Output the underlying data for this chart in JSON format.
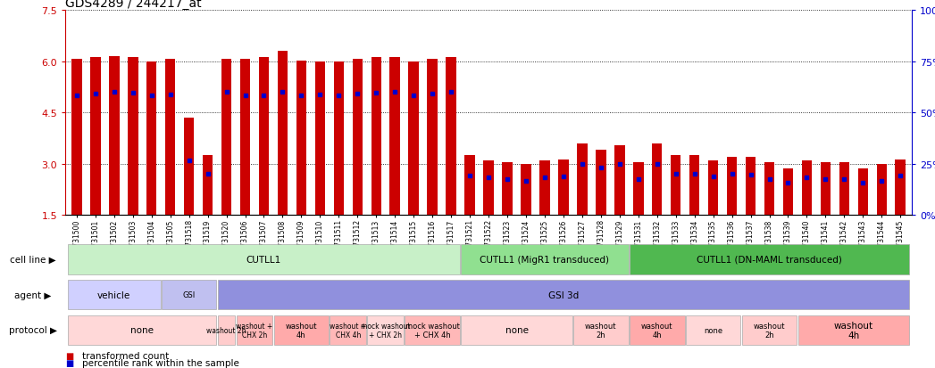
{
  "title": "GDS4289 / 244217_at",
  "ylim_left": [
    1.5,
    7.5
  ],
  "ylim_right": [
    0,
    100
  ],
  "yticks_left": [
    1.5,
    3.0,
    4.5,
    6.0,
    7.5
  ],
  "yticks_right": [
    0,
    25,
    50,
    75,
    100
  ],
  "left_axis_color": "#cc0000",
  "right_axis_color": "#0000cc",
  "bar_color": "#cc0000",
  "marker_color": "#0000cc",
  "samples": [
    "GSM731500",
    "GSM731501",
    "GSM731502",
    "GSM731503",
    "GSM731504",
    "GSM731505",
    "GSM731518",
    "GSM731519",
    "GSM731520",
    "GSM731506",
    "GSM731507",
    "GSM731508",
    "GSM731509",
    "GSM731510",
    "GSM731511",
    "GSM731512",
    "GSM731513",
    "GSM731514",
    "GSM731515",
    "GSM731516",
    "GSM731517",
    "GSM731521",
    "GSM731522",
    "GSM731523",
    "GSM731524",
    "GSM731525",
    "GSM731526",
    "GSM731527",
    "GSM731528",
    "GSM731529",
    "GSM731531",
    "GSM731532",
    "GSM731533",
    "GSM731534",
    "GSM731535",
    "GSM731536",
    "GSM731537",
    "GSM731538",
    "GSM731539",
    "GSM731540",
    "GSM731541",
    "GSM731542",
    "GSM731543",
    "GSM731544",
    "GSM731545"
  ],
  "bar_heights": [
    6.08,
    6.12,
    6.15,
    6.12,
    6.0,
    6.08,
    4.35,
    3.25,
    6.08,
    6.08,
    6.12,
    6.32,
    6.02,
    6.0,
    6.0,
    6.08,
    6.12,
    6.12,
    6.0,
    6.08,
    6.12,
    3.25,
    3.1,
    3.05,
    3.0,
    3.1,
    3.12,
    3.6,
    3.4,
    3.55,
    3.05,
    3.6,
    3.25,
    3.25,
    3.1,
    3.2,
    3.2,
    3.05,
    2.85,
    3.1,
    3.05,
    3.05,
    2.85,
    3.0,
    3.12
  ],
  "marker_heights": [
    5.0,
    5.05,
    5.1,
    5.08,
    5.0,
    5.02,
    3.1,
    2.7,
    5.1,
    5.0,
    5.0,
    5.1,
    5.0,
    5.02,
    5.0,
    5.05,
    5.08,
    5.1,
    5.0,
    5.05,
    5.1,
    2.65,
    2.6,
    2.55,
    2.5,
    2.6,
    2.62,
    3.0,
    2.9,
    3.0,
    2.55,
    3.0,
    2.7,
    2.7,
    2.62,
    2.7,
    2.68,
    2.55,
    2.45,
    2.6,
    2.55,
    2.55,
    2.45,
    2.5,
    2.65
  ],
  "cell_line_groups": [
    {
      "label": "CUTLL1",
      "start": 0,
      "end": 21,
      "color": "#c8f0c8"
    },
    {
      "label": "CUTLL1 (MigR1 transduced)",
      "start": 21,
      "end": 30,
      "color": "#90e090"
    },
    {
      "label": "CUTLL1 (DN-MAML transduced)",
      "start": 30,
      "end": 45,
      "color": "#50b850"
    }
  ],
  "agent_groups": [
    {
      "label": "vehicle",
      "start": 0,
      "end": 5,
      "color": "#d0d0ff"
    },
    {
      "label": "GSI",
      "start": 5,
      "end": 8,
      "color": "#c0c0f0"
    },
    {
      "label": "GSI 3d",
      "start": 8,
      "end": 45,
      "color": "#9090dd"
    }
  ],
  "protocol_groups": [
    {
      "label": "none",
      "start": 0,
      "end": 8,
      "color": "#ffd8d8"
    },
    {
      "label": "washout 2h",
      "start": 8,
      "end": 9,
      "color": "#ffcccc"
    },
    {
      "label": "washout +\nCHX 2h",
      "start": 9,
      "end": 11,
      "color": "#ffb8b8"
    },
    {
      "label": "washout\n4h",
      "start": 11,
      "end": 14,
      "color": "#ffaaaa"
    },
    {
      "label": "washout +\nCHX 4h",
      "start": 14,
      "end": 16,
      "color": "#ffb8b8"
    },
    {
      "label": "mock washout\n+ CHX 2h",
      "start": 16,
      "end": 18,
      "color": "#ffd8d8"
    },
    {
      "label": "mock washout\n+ CHX 4h",
      "start": 18,
      "end": 21,
      "color": "#ffb8b8"
    },
    {
      "label": "none",
      "start": 21,
      "end": 27,
      "color": "#ffd8d8"
    },
    {
      "label": "washout\n2h",
      "start": 27,
      "end": 30,
      "color": "#ffcccc"
    },
    {
      "label": "washout\n4h",
      "start": 30,
      "end": 33,
      "color": "#ffaaaa"
    },
    {
      "label": "none",
      "start": 33,
      "end": 36,
      "color": "#ffd8d8"
    },
    {
      "label": "washout\n2h",
      "start": 36,
      "end": 39,
      "color": "#ffcccc"
    },
    {
      "label": "washout\n4h",
      "start": 39,
      "end": 45,
      "color": "#ffaaaa"
    }
  ],
  "legend_items": [
    {
      "label": "transformed count",
      "color": "#cc0000"
    },
    {
      "label": "percentile rank within the sample",
      "color": "#0000cc"
    }
  ],
  "tick_label_fontsize": 5.5,
  "title_fontsize": 10,
  "ann_fontsize": 7.5,
  "row_label_fontsize": 7.5
}
